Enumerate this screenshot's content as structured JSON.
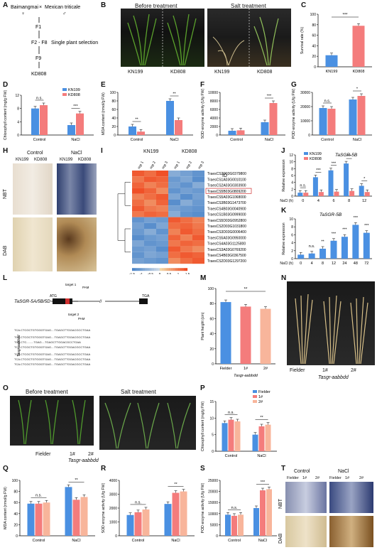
{
  "panels": {
    "A": "A",
    "B": "B",
    "C": "C",
    "D": "D",
    "E": "E",
    "F": "F",
    "G": "G",
    "H": "H",
    "I": "I",
    "J": "J",
    "K": "K",
    "L": "L",
    "M": "M",
    "N": "N",
    "O": "O",
    "P": "P",
    "Q": "Q",
    "R": "R",
    "S": "S",
    "T": "T"
  },
  "panelA": {
    "parent1": "Baimangmai",
    "cross": "×",
    "parent2": "Mexican triticale",
    "female": "♀",
    "male": "♂",
    "gen1": "F1",
    "gen2": "F2 - F8",
    "gen3": "F9",
    "selection": "Single plant selection",
    "line": "KD808"
  },
  "panelB": {
    "before": "Before treatment",
    "after": "Salt treatment",
    "lbl1": "KN199",
    "lbl2": "KD808",
    "lbl3": "KN199",
    "lbl4": "KD808"
  },
  "legend": {
    "kn": "KN199",
    "kd": "KD808",
    "fielder": "Fielder",
    "l1": "1#",
    "l2": "2#"
  },
  "labels": {
    "control": "Control",
    "nacl": "NaCl",
    "ns": "n.s.",
    "tasgr": "Tasgr-aabbdd",
    "fielder": "Fielder",
    "l1": "1#",
    "l2": "2#",
    "nbt": "NBT",
    "dab": "DAB",
    "id": "ID",
    "rep1": "rep 1",
    "rep2": "rep 2",
    "rep3": "rep 3",
    "naclh": "NaCl (h)",
    "gene": "TaSGR-5B"
  },
  "panelL": {
    "gene": "TaSGR-5A/5B/5D",
    "atg": "ATG",
    "tga": "TGA",
    "t1": "target 1",
    "t2": "target 2",
    "pam": "PAM"
  },
  "panelO": {
    "before": "Before treatment",
    "after": "Salt treatment"
  },
  "panelI": {
    "ids": [
      "TraesCS2D03G0379800",
      "TraesCS1A03G0010100",
      "TraesCS2A03G0303900",
      "TraesCS5B03G0809200",
      "TraesCS5A03G1068000",
      "TraesCS3B03G1473700",
      "TraesCS4B03G0040900",
      "TraesCS1B03G0999000",
      "TraesCS5D03G0952800",
      "TraesCS2D03G1031800",
      "TraesCS3D03G0006400",
      "TraesCS5A03G0950000",
      "TraesCS4A03G1125800",
      "TraesCS3A03G0769200",
      "TraesCS4B03G0367500",
      "TraesCS2D03G1297200"
    ],
    "scale": [
      "-1.5",
      "-1",
      "-0.5",
      "0",
      "0.5",
      "1",
      "1.5"
    ]
  },
  "chart_data": [
    {
      "panel": "C",
      "type": "bar",
      "categories": [
        "KN199",
        "KD808"
      ],
      "values": [
        22,
        78
      ],
      "ylabel": "Survival rate (%)",
      "ylim": [
        0,
        100
      ],
      "ticks": [
        0,
        20,
        40,
        60,
        80,
        100
      ],
      "sig": "***"
    },
    {
      "panel": "D",
      "type": "bar",
      "categories": [
        "Control",
        "NaCl"
      ],
      "series": [
        {
          "name": "KN199",
          "values": [
            8,
            3
          ]
        },
        {
          "name": "KD808",
          "values": [
            9,
            6.5
          ]
        }
      ],
      "ylabel": "Chlorophyll content (mg/g FW)",
      "ylim": [
        0,
        12
      ],
      "ticks": [
        0,
        4,
        8,
        12
      ],
      "sig": [
        "n.s.",
        "***"
      ]
    },
    {
      "panel": "E",
      "type": "bar",
      "categories": [
        "Control",
        "NaCl"
      ],
      "series": [
        {
          "name": "KN199",
          "values": [
            20,
            80
          ]
        },
        {
          "name": "KD808",
          "values": [
            8,
            35
          ]
        }
      ],
      "ylabel": "MDA content (nmol/g FW)",
      "ylim": [
        0,
        100
      ],
      "ticks": [
        0,
        20,
        40,
        60,
        80,
        100
      ],
      "sig": [
        "**",
        "**"
      ]
    },
    {
      "panel": "F",
      "type": "bar",
      "categories": [
        "Control",
        "NaCl"
      ],
      "series": [
        {
          "name": "KN199",
          "values": [
            1000,
            3000
          ]
        },
        {
          "name": "KD808",
          "values": [
            1100,
            7500
          ]
        }
      ],
      "ylabel": "SOD enzyme activity (U/g FW)",
      "ylim": [
        0,
        10000
      ],
      "ticks": [
        0,
        2000,
        4000,
        6000,
        8000,
        10000
      ],
      "sig": [
        "",
        "***"
      ]
    },
    {
      "panel": "G",
      "type": "bar",
      "categories": [
        "Control",
        "NaCl"
      ],
      "series": [
        {
          "name": "KN199",
          "values": [
            19000,
            25000
          ]
        },
        {
          "name": "KD808",
          "values": [
            18500,
            27500
          ]
        }
      ],
      "ylabel": "POD enzyme activity (U/g FW)",
      "ylim": [
        0,
        30000
      ],
      "ticks": [
        0,
        10000,
        20000,
        30000
      ],
      "sig": [
        "n.s.",
        "*"
      ]
    },
    {
      "panel": "J",
      "type": "bar",
      "categories": [
        "0",
        "4",
        "6",
        "8",
        "12"
      ],
      "series": [
        {
          "name": "KN199",
          "values": [
            1,
            5.5,
            7.5,
            9.5,
            3
          ]
        },
        {
          "name": "KD808",
          "values": [
            1,
            1.2,
            1.3,
            1.5,
            1.2
          ]
        }
      ],
      "ylabel": "Relative expression",
      "xlabel": "NaCl (h)",
      "ylim": [
        0,
        12
      ],
      "ticks": [
        0,
        2,
        4,
        6,
        8,
        10,
        12
      ],
      "sig": [
        "n.s.",
        "***",
        "***",
        "***",
        "*"
      ]
    },
    {
      "panel": "K",
      "type": "bar",
      "categories": [
        "0",
        "4",
        "8",
        "12",
        "24",
        "48",
        "72"
      ],
      "values": [
        1,
        1.3,
        2.5,
        4.5,
        5.5,
        8.5,
        6.5
      ],
      "ylabel": "Relative expression",
      "xlabel": "NaCl (h)",
      "ylim": [
        0,
        10
      ],
      "ticks": [
        0,
        2,
        4,
        6,
        8,
        10
      ],
      "sig": [
        "",
        "n.s.",
        "**",
        "***",
        "***",
        "***",
        "***"
      ]
    },
    {
      "panel": "M",
      "type": "bar",
      "categories": [
        "Fielder",
        "1#",
        "2#"
      ],
      "values": [
        82,
        76,
        73
      ],
      "ylabel": "Plant height (cm)",
      "ylim": [
        0,
        100
      ],
      "ticks": [
        0,
        20,
        40,
        60,
        80,
        100
      ],
      "sig": "**"
    },
    {
      "panel": "P",
      "type": "bar",
      "categories": [
        "Control",
        "NaCl"
      ],
      "series": [
        {
          "name": "Fielder",
          "values": [
            8.5,
            5
          ]
        },
        {
          "name": "1#",
          "values": [
            9.5,
            7.5
          ]
        },
        {
          "name": "2#",
          "values": [
            9,
            8
          ]
        }
      ],
      "ylabel": "Chlorophyll content (mg/g FW)",
      "ylim": [
        0,
        15
      ],
      "ticks": [
        0,
        5,
        10,
        15
      ],
      "sig": [
        "n.s.",
        "**"
      ]
    },
    {
      "panel": "Q",
      "type": "bar",
      "categories": [
        "Control",
        "NaCl"
      ],
      "series": [
        {
          "name": "Fielder",
          "values": [
            58,
            88
          ]
        },
        {
          "name": "1#",
          "values": [
            58,
            65
          ]
        },
        {
          "name": "2#",
          "values": [
            60,
            70
          ]
        }
      ],
      "ylabel": "MDA content (nmol/g FW)",
      "ylim": [
        0,
        100
      ],
      "ticks": [
        0,
        20,
        40,
        60,
        80,
        100
      ],
      "sig": [
        "n.s.",
        "**"
      ]
    },
    {
      "panel": "R",
      "type": "bar",
      "categories": [
        "Control",
        "NaCl"
      ],
      "series": [
        {
          "name": "Fielder",
          "values": [
            1500,
            2300
          ]
        },
        {
          "name": "1#",
          "values": [
            1700,
            3100
          ]
        },
        {
          "name": "2#",
          "values": [
            1900,
            3200
          ]
        }
      ],
      "ylabel": "SOD enzyme activity (U/g FW)",
      "ylim": [
        0,
        4000
      ],
      "ticks": [
        0,
        1000,
        2000,
        3000,
        4000
      ],
      "sig": [
        "n.s.",
        "**"
      ]
    },
    {
      "panel": "S",
      "type": "bar",
      "categories": [
        "Control",
        "NaCl"
      ],
      "series": [
        {
          "name": "Fielder",
          "values": [
            9500,
            12500
          ]
        },
        {
          "name": "1#",
          "values": [
            9000,
            20500
          ]
        },
        {
          "name": "2#",
          "values": [
            9500,
            21000
          ]
        }
      ],
      "ylabel": "POD enzyme activity (U/g FW)",
      "ylim": [
        0,
        25000
      ],
      "ticks": [
        0,
        5000,
        10000,
        15000,
        20000,
        25000
      ],
      "sig": [
        "n.s.",
        "***"
      ]
    }
  ],
  "colors": {
    "blue": "#4a90e2",
    "red": "#f47c7c",
    "fielder": "#4a90e2",
    "l1": "#f47c7c",
    "l2": "#f8b59b"
  }
}
